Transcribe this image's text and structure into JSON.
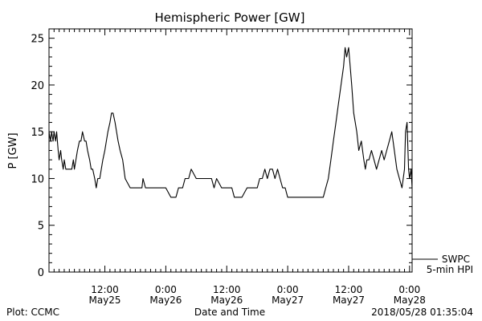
{
  "chart_data": {
    "type": "line",
    "title": "Hemispheric Power [GW]",
    "ylabel": "P [GW]",
    "xlabel": "Date and Time",
    "ylim": [
      0,
      26
    ],
    "xlim_hours": [
      0,
      71.5
    ],
    "y_ticks": [
      0,
      5,
      10,
      15,
      20,
      25
    ],
    "x_ticks": [
      {
        "t": 11,
        "line1": "12:00",
        "line2": "May25"
      },
      {
        "t": 23,
        "line1": "0:00",
        "line2": "May26"
      },
      {
        "t": 35,
        "line1": "12:00",
        "line2": "May26"
      },
      {
        "t": 47,
        "line1": "0:00",
        "line2": "May27"
      },
      {
        "t": 59,
        "line1": "12:00",
        "line2": "May27"
      },
      {
        "t": 71,
        "line1": "0:00",
        "line2": "May28"
      }
    ],
    "series": [
      {
        "name": "SWPC",
        "x_hours": [
          0,
          0.3,
          0.5,
          0.8,
          1.0,
          1.3,
          1.5,
          1.8,
          2.0,
          2.3,
          2.5,
          2.8,
          3.0,
          3.3,
          3.5,
          3.8,
          4.0,
          4.3,
          4.5,
          4.8,
          5.0,
          5.3,
          5.6,
          6.0,
          6.3,
          6.6,
          7.0,
          7.3,
          7.6,
          8.0,
          8.3,
          8.6,
          9.0,
          9.3,
          9.6,
          10.0,
          10.3,
          10.6,
          11.0,
          11.3,
          11.6,
          12.0,
          12.3,
          12.6,
          13.0,
          13.3,
          13.6,
          14.0,
          14.5,
          15.0,
          16.0,
          17.0,
          18.0,
          18.3,
          18.5,
          19.0,
          20.0,
          20.5,
          21.0,
          22.0,
          22.5,
          23.0,
          24.0,
          24.5,
          25.0,
          25.5,
          25.8,
          26.0,
          26.3,
          26.8,
          27.5,
          28.0,
          29.0,
          30.0,
          30.5,
          31.0,
          31.5,
          32.0,
          32.5,
          33.0,
          34.0,
          35.0,
          36.0,
          36.5,
          37.0,
          38.0,
          39.0,
          40.0,
          41.0,
          41.5,
          42.0,
          42.5,
          43.0,
          43.5,
          44.0,
          44.5,
          45.0,
          45.5,
          46.0,
          46.5,
          47.0,
          48.0,
          49.0,
          50.0,
          51.0,
          52.0,
          53.0,
          54.0,
          54.5,
          55.0,
          55.5,
          56.0,
          56.5,
          57.0,
          57.5,
          58.0,
          58.3,
          58.6,
          59.0,
          59.3,
          59.6,
          60.0,
          60.3,
          60.6,
          61.0,
          61.5,
          62.0,
          62.3,
          62.6,
          63.0,
          63.5,
          64.0,
          64.5,
          65.0,
          65.5,
          66.0,
          66.5,
          67.0,
          67.5,
          68.0,
          68.5,
          69.0,
          69.5,
          70.0,
          70.2,
          70.5,
          70.8,
          71.0,
          71.3,
          71.5
        ],
        "values": [
          15,
          14,
          15,
          14,
          15,
          14,
          15,
          13,
          12,
          13,
          12,
          11,
          12,
          11,
          11,
          11,
          11,
          11,
          11,
          12,
          11,
          12,
          13,
          14,
          14,
          15,
          14,
          14,
          13,
          12,
          11,
          11,
          10,
          9,
          10,
          10,
          11,
          12,
          13,
          14,
          15,
          16,
          17,
          17,
          16,
          15,
          14,
          13,
          12,
          10,
          9,
          9,
          9,
          9,
          10,
          9,
          9,
          9,
          9,
          9,
          9,
          9,
          8,
          8,
          8,
          9,
          9,
          9,
          9,
          10,
          10,
          11,
          10,
          10,
          10,
          10,
          10,
          10,
          9,
          10,
          9,
          9,
          9,
          8,
          8,
          8,
          9,
          9,
          9,
          10,
          10,
          11,
          10,
          11,
          11,
          10,
          11,
          10,
          9,
          9,
          8,
          8,
          8,
          8,
          8,
          8,
          8,
          8,
          9,
          10,
          12,
          14,
          16,
          18,
          20,
          22,
          24,
          23,
          24,
          22,
          20,
          17,
          16,
          15,
          13,
          14,
          12,
          11,
          12,
          12,
          13,
          12,
          11,
          12,
          13,
          12,
          13,
          14,
          15,
          13,
          11,
          10,
          9,
          11,
          15,
          16,
          11,
          10,
          11,
          9
        ]
      }
    ],
    "legend": {
      "line1": "SWPC",
      "line2": "5-min HPI",
      "placement": "bottom-right"
    }
  },
  "footer": {
    "left": "Plot: CCMC",
    "center": "Date and Time",
    "right": "2018/05/28 01:35:04"
  }
}
